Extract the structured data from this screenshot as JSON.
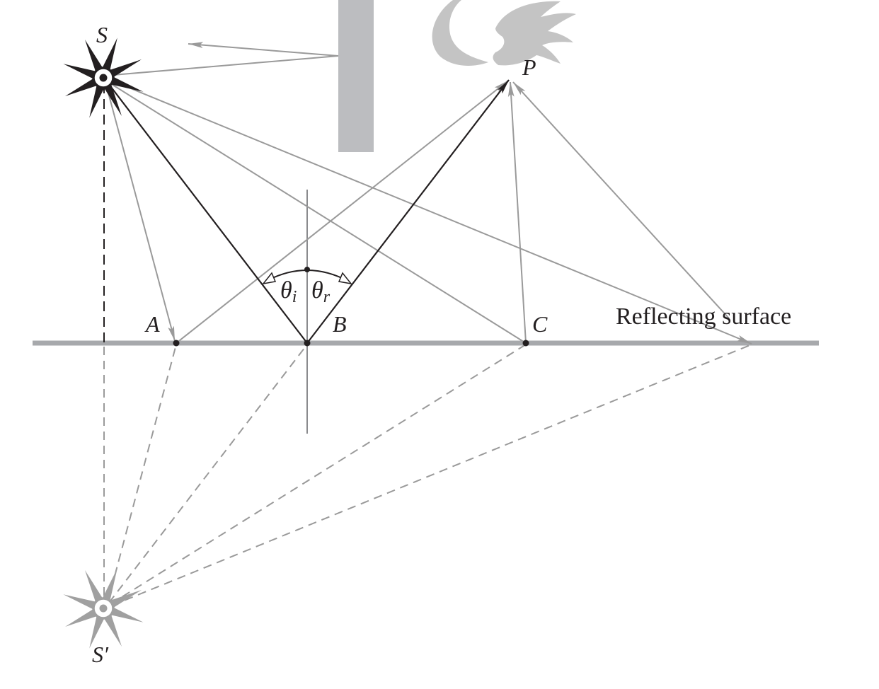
{
  "labels": {
    "source": "S",
    "image_source": "S′",
    "observer": "P",
    "point_a": "A",
    "point_b": "B",
    "point_c": "C",
    "theta": "θ",
    "incidence_sub": "i",
    "reflection_sub": "r",
    "surface": "Reflecting surface"
  },
  "colors": {
    "dark": "#231f20",
    "ray_gray": "#9a9a9a",
    "surface_gray": "#a7a9ac",
    "star_gray": "#a0a0a0",
    "blocker_gray": "#bcbdc0"
  }
}
